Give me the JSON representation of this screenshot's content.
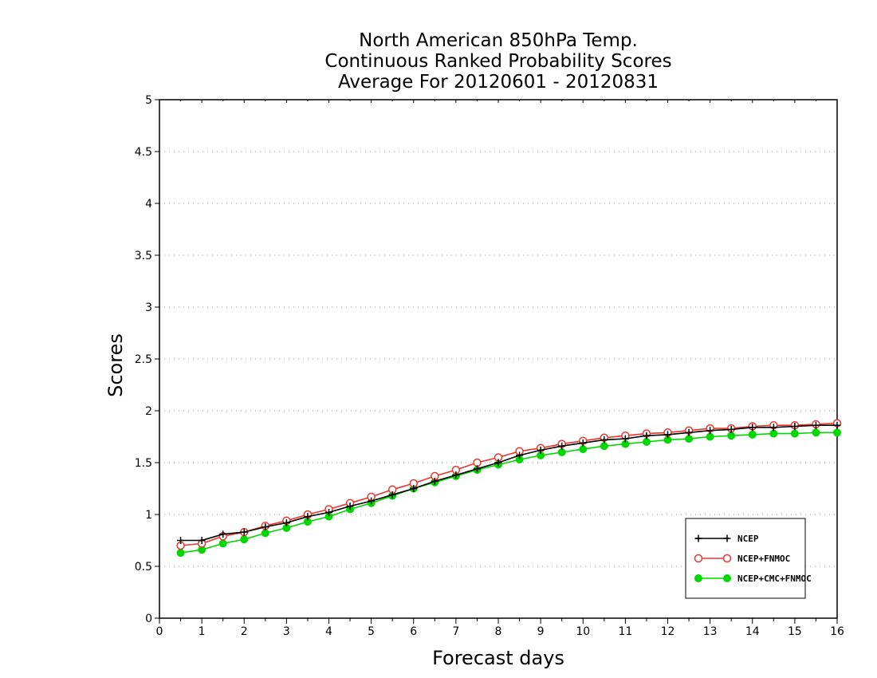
{
  "chart_data": {
    "type": "line",
    "title": [
      "North American 850hPa Temp.",
      "Continuous Ranked Probability Scores",
      "Average For 20120601 - 20120831"
    ],
    "xlabel": "Forecast days",
    "ylabel": "Scores",
    "xlim": [
      0,
      16
    ],
    "ylim": [
      0,
      5
    ],
    "xticks": [
      "0",
      "1",
      "2",
      "3",
      "4",
      "5",
      "6",
      "7",
      "8",
      "9",
      "10",
      "11",
      "12",
      "13",
      "14",
      "15",
      "16"
    ],
    "yticks": [
      "0",
      "0.5",
      "1",
      "1.5",
      "2",
      "2.5",
      "3",
      "3.5",
      "4",
      "4.5",
      "5"
    ],
    "grid": "horizontal-dotted",
    "legend_position": "bottom-right",
    "x": [
      0.5,
      1,
      1.5,
      2,
      2.5,
      3,
      3.5,
      4,
      4.5,
      5,
      5.5,
      6,
      6.5,
      7,
      7.5,
      8,
      8.5,
      9,
      9.5,
      10,
      10.5,
      11,
      11.5,
      12,
      12.5,
      13,
      13.5,
      14,
      14.5,
      15,
      15.5,
      16
    ],
    "series": [
      {
        "name": "NCEP",
        "color": "#000000",
        "marker": "plus",
        "values": [
          0.75,
          0.75,
          0.81,
          0.83,
          0.88,
          0.92,
          0.98,
          1.02,
          1.08,
          1.13,
          1.19,
          1.25,
          1.32,
          1.38,
          1.44,
          1.5,
          1.57,
          1.62,
          1.66,
          1.69,
          1.72,
          1.73,
          1.76,
          1.77,
          1.79,
          1.81,
          1.82,
          1.84,
          1.84,
          1.85,
          1.86,
          1.86
        ]
      },
      {
        "name": "NCEP+FNMOC",
        "color": "#e8362f",
        "marker": "open-circle",
        "values": [
          0.7,
          0.72,
          0.79,
          0.83,
          0.89,
          0.94,
          1.0,
          1.05,
          1.11,
          1.17,
          1.24,
          1.3,
          1.37,
          1.43,
          1.5,
          1.55,
          1.61,
          1.64,
          1.68,
          1.71,
          1.74,
          1.76,
          1.78,
          1.79,
          1.81,
          1.83,
          1.83,
          1.85,
          1.86,
          1.86,
          1.87,
          1.88
        ]
      },
      {
        "name": "NCEP+CMC+FNMOC",
        "color": "#00d800",
        "marker": "filled-circle",
        "values": [
          0.63,
          0.66,
          0.72,
          0.76,
          0.82,
          0.87,
          0.93,
          0.98,
          1.05,
          1.11,
          1.18,
          1.25,
          1.31,
          1.37,
          1.43,
          1.48,
          1.53,
          1.57,
          1.6,
          1.63,
          1.66,
          1.68,
          1.7,
          1.72,
          1.73,
          1.75,
          1.76,
          1.77,
          1.78,
          1.78,
          1.79,
          1.79
        ]
      }
    ]
  }
}
